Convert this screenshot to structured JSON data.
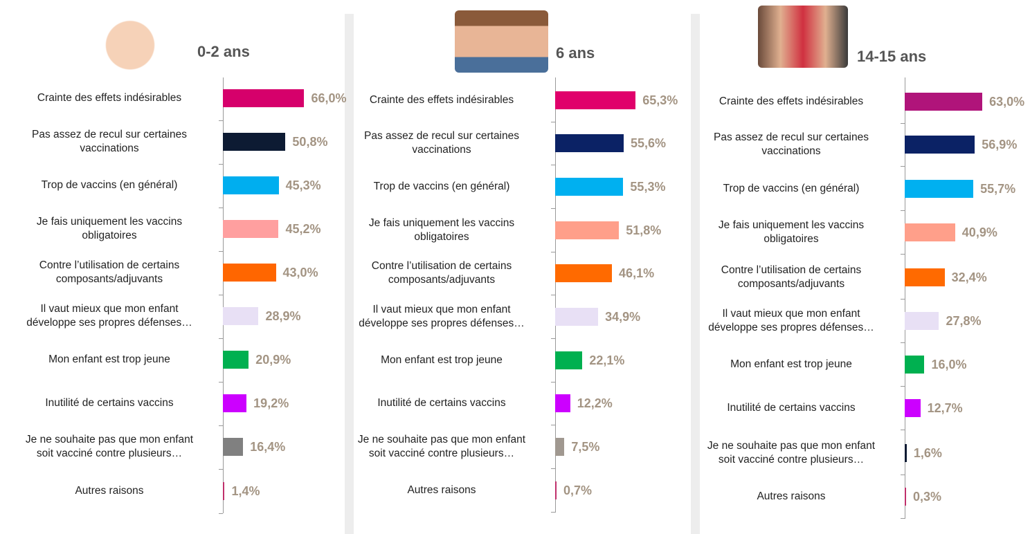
{
  "chart_data": [
    {
      "type": "bar",
      "title": "0-2 ans",
      "categories": [
        "Crainte des effets indésirables",
        "Pas assez de recul sur certaines\nvaccinations",
        "Trop de vaccins (en général)",
        "Je fais uniquement les vaccins\nobligatoires",
        "Contre l’utilisation de certains\ncomposants/adjuvants",
        "Il vaut mieux que mon enfant\ndéveloppe ses propres défenses…",
        "Mon enfant est trop jeune",
        "Inutilité de certains vaccins",
        "Je ne souhaite pas que mon enfant\nsoit vacciné contre plusieurs…",
        "Autres raisons"
      ],
      "values": [
        66.0,
        50.8,
        45.3,
        45.2,
        43.0,
        28.9,
        20.9,
        19.2,
        16.4,
        1.4
      ],
      "value_labels": [
        "66,0%",
        "50,8%",
        "45,3%",
        "45,2%",
        "43,0%",
        "28,9%",
        "20,9%",
        "19,2%",
        "16,4%",
        "1,4%"
      ],
      "colors": [
        "#d6006b",
        "#0d1b33",
        "#00aeef",
        "#ff9f9f",
        "#ff6600",
        "#e8e0f5",
        "#00b050",
        "#cc00ff",
        "#808080",
        "#c0306b"
      ],
      "xlim": [
        0,
        100
      ]
    },
    {
      "type": "bar",
      "title": "6 ans",
      "categories": [
        "Crainte des effets indésirables",
        "Pas assez de recul sur certaines\nvaccinations",
        "Trop de vaccins (en général)",
        "Je fais uniquement les vaccins\nobligatoires",
        "Contre l’utilisation de certains\ncomposants/adjuvants",
        "Il vaut mieux que mon enfant\ndéveloppe ses propres défenses…",
        "Mon enfant est trop jeune",
        "Inutilité de certains vaccins",
        "Je ne souhaite pas que mon enfant\nsoit vacciné contre plusieurs…",
        "Autres raisons"
      ],
      "values": [
        65.3,
        55.6,
        55.3,
        51.8,
        46.1,
        34.9,
        22.1,
        12.2,
        7.5,
        0.7
      ],
      "value_labels": [
        "65,3%",
        "55,6%",
        "55,3%",
        "51,8%",
        "46,1%",
        "34,9%",
        "22,1%",
        "12,2%",
        "7,5%",
        "0,7%"
      ],
      "colors": [
        "#e0006b",
        "#0b2265",
        "#00b0f0",
        "#ff9f8a",
        "#ff6a00",
        "#e8e0f5",
        "#00b050",
        "#cc00ff",
        "#a09890",
        "#c0306b"
      ],
      "xlim": [
        0,
        100
      ]
    },
    {
      "type": "bar",
      "title": "14-15 ans",
      "categories": [
        "Crainte des effets indésirables",
        "Pas assez de recul sur certaines\nvaccinations",
        "Trop de vaccins (en général)",
        "Je fais uniquement les vaccins\nobligatoires",
        "Contre l’utilisation de certains\ncomposants/adjuvants",
        "Il vaut mieux que mon enfant\ndéveloppe ses propres défenses…",
        "Mon enfant est trop jeune",
        "Inutilité de certains vaccins",
        "Je ne souhaite pas que mon enfant\nsoit vacciné contre plusieurs…",
        "Autres raisons"
      ],
      "values": [
        63.0,
        56.9,
        55.7,
        40.9,
        32.4,
        27.8,
        16.0,
        12.7,
        1.6,
        0.3
      ],
      "value_labels": [
        "63,0%",
        "56,9%",
        "55,7%",
        "40,9%",
        "32,4%",
        "27,8%",
        "16,0%",
        "12,7%",
        "1,6%",
        "0,3%"
      ],
      "colors": [
        "#b0147a",
        "#0b2265",
        "#00b0f0",
        "#ff9f8a",
        "#ff6a00",
        "#e8e0f5",
        "#00b050",
        "#cc00ff",
        "#0d1b33",
        "#c0306b"
      ],
      "xlim": [
        0,
        100
      ]
    }
  ]
}
